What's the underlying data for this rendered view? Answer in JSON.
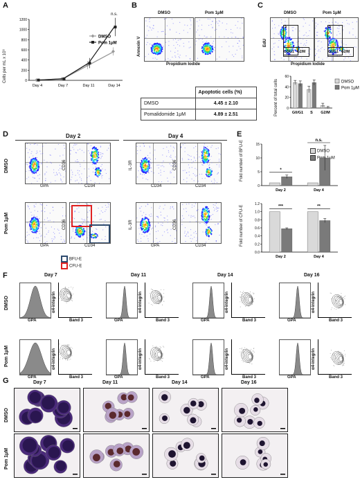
{
  "panels": {
    "A": "A",
    "B": "B",
    "C": "C",
    "D": "D",
    "E": "E",
    "F": "F",
    "G": "G"
  },
  "colors": {
    "dmso": "#9a9a9a",
    "pom": "#333333",
    "bfu": "#2d4a6e",
    "cfu": "#e02020",
    "stain_dark": "#3b1f5a",
    "stain_light": "#c9b9d8"
  },
  "groups": {
    "dmso": "DMSO",
    "pom": "Pom 1μM"
  },
  "A": {
    "ylabel": "Cells per mL x 10⁶",
    "ns": "n.s.",
    "chart_data": {
      "type": "line",
      "categories": [
        "Day 4",
        "Day 7",
        "Day 11",
        "Day 14"
      ],
      "ylim": [
        0,
        1200
      ],
      "yticks": [
        "0",
        "200",
        "400",
        "600",
        "800",
        "1000",
        "1200"
      ],
      "series": [
        {
          "name": "DMSO",
          "values": [
            5,
            30,
            300,
            570
          ],
          "err": [
            5,
            10,
            80,
            80
          ]
        },
        {
          "name": "Pom 1μM",
          "values": [
            5,
            30,
            340,
            1050
          ],
          "err": [
            5,
            10,
            100,
            180
          ]
        }
      ]
    }
  },
  "B": {
    "xlabel": "Propidium Iodide",
    "ylabel": "Annexin V",
    "table": {
      "header": [
        "",
        "Apoptotic cells (%)"
      ],
      "rows": [
        [
          "DMSO",
          "4.45 ± 2.10"
        ],
        [
          "Pomalidomide 1μM",
          "4.89 ± 2.51"
        ]
      ]
    }
  },
  "C": {
    "xlabel": "Propidium Iodide",
    "ylabel": "EdU",
    "gates": [
      "S",
      "G0/G1",
      "G2/M"
    ],
    "chart_data": {
      "type": "bar",
      "categories": [
        "G0/G1",
        "S",
        "G2/M"
      ],
      "ylabel": "Percent of total cells",
      "ylim": [
        0,
        60
      ],
      "yticks": [
        "0",
        "20",
        "40",
        "60"
      ],
      "series": [
        {
          "name": "DMSO",
          "values": [
            48,
            35,
            5
          ],
          "err": [
            4,
            6,
            4
          ]
        },
        {
          "name": "Pom 1μM",
          "values": [
            46,
            48,
            1
          ],
          "err": [
            5,
            5,
            2
          ]
        }
      ]
    }
  },
  "D": {
    "day2": "Day 2",
    "day4": "Day 4",
    "labels": {
      "GPA": "GPA",
      "CD36": "CD36",
      "CD34": "CD34",
      "IL3R": "IL-3R"
    },
    "legend": {
      "bfu": "BFU-E",
      "cfu": "CFU-E"
    }
  },
  "E": {
    "chart_data": [
      {
        "type": "bar",
        "categories": [
          "Day 2",
          "Day 4"
        ],
        "ylabel": "Fold number of BFU-E",
        "ylim": [
          0,
          15
        ],
        "yticks": [
          "0",
          "5",
          "10",
          "15"
        ],
        "series": [
          {
            "name": "DMSO",
            "values": [
              1,
              1
            ],
            "err": [
              0,
              0
            ]
          },
          {
            "name": "Pom 1μM",
            "values": [
              3.2,
              10
            ],
            "err": [
              0.6,
              4.5
            ]
          }
        ],
        "sig": [
          "*",
          "n.s."
        ]
      },
      {
        "type": "bar",
        "categories": [
          "Day 2",
          "Day 4"
        ],
        "ylabel": "Fold number of CFU-E",
        "ylim": [
          0,
          1.2
        ],
        "yticks": [
          "0.0",
          "0.2",
          "0.4",
          "0.6",
          "0.8",
          "1.0",
          "1.2"
        ],
        "series": [
          {
            "name": "DMSO",
            "values": [
              1,
              1
            ],
            "err": [
              0,
              0
            ]
          },
          {
            "name": "Pom 1μM",
            "values": [
              0.58,
              0.78
            ],
            "err": [
              0.02,
              0.05
            ]
          }
        ],
        "sig": [
          "***",
          "**"
        ]
      }
    ]
  },
  "F": {
    "days": [
      "Day 7",
      "Day 11",
      "Day 14",
      "Day 16"
    ],
    "gpa": "GPA",
    "band3": "Band 3",
    "integrin": "α4-integrin"
  },
  "G": {
    "days": [
      "Day 7",
      "Day 11",
      "Day 14",
      "Day 16"
    ]
  }
}
